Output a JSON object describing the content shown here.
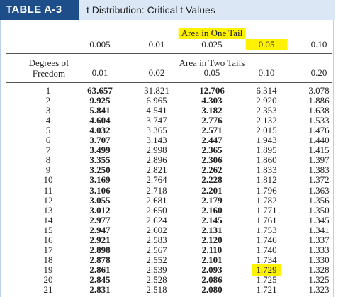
{
  "header": {
    "label": "TABLE A-3",
    "title": "t Distribution: Critical t Values"
  },
  "table": {
    "one_tail_caption": "Area in One Tail",
    "one_tail": [
      "0.005",
      "0.01",
      "0.025",
      "0.05",
      "0.10"
    ],
    "df_caption": "Degrees of Freedom",
    "two_tail_caption": "Area in Two Tails",
    "two_tail": [
      "0.01",
      "0.02",
      "0.05",
      "0.10",
      "0.20"
    ],
    "rows": [
      [
        "1",
        "63.657",
        "31.821",
        "12.706",
        "6.314",
        "3.078"
      ],
      [
        "2",
        "9.925",
        "6.965",
        "4.303",
        "2.920",
        "1.886"
      ],
      [
        "3",
        "5.841",
        "4.541",
        "3.182",
        "2.353",
        "1.638"
      ],
      [
        "4",
        "4.604",
        "3.747",
        "2.776",
        "2.132",
        "1.533"
      ],
      [
        "5",
        "4.032",
        "3.365",
        "2.571",
        "2.015",
        "1.476"
      ],
      [
        "6",
        "3.707",
        "3.143",
        "2.447",
        "1.943",
        "1.440"
      ],
      [
        "7",
        "3.499",
        "2.998",
        "2.365",
        "1.895",
        "1.415"
      ],
      [
        "8",
        "3.355",
        "2.896",
        "2.306",
        "1.860",
        "1.397"
      ],
      [
        "9",
        "3.250",
        "2.821",
        "2.262",
        "1.833",
        "1.383"
      ],
      [
        "10",
        "3.169",
        "2.764",
        "2.228",
        "1.812",
        "1.372"
      ],
      [
        "11",
        "3.106",
        "2.718",
        "2.201",
        "1.796",
        "1.363"
      ],
      [
        "12",
        "3.055",
        "2.681",
        "2.179",
        "1.782",
        "1.356"
      ],
      [
        "13",
        "3.012",
        "2.650",
        "2.160",
        "1.771",
        "1.350"
      ],
      [
        "14",
        "2.977",
        "2.624",
        "2.145",
        "1.761",
        "1.345"
      ],
      [
        "15",
        "2.947",
        "2.602",
        "2.131",
        "1.753",
        "1.341"
      ],
      [
        "16",
        "2.921",
        "2.583",
        "2.120",
        "1.746",
        "1.337"
      ],
      [
        "17",
        "2.898",
        "2.567",
        "2.110",
        "1.740",
        "1.333"
      ],
      [
        "18",
        "2.878",
        "2.552",
        "2.101",
        "1.734",
        "1.330"
      ],
      [
        "19",
        "2.861",
        "2.539",
        "2.093",
        "1.729",
        "1.328"
      ],
      [
        "20",
        "2.845",
        "2.528",
        "2.086",
        "1.725",
        "1.325"
      ],
      [
        "21",
        "2.831",
        "2.518",
        "2.080",
        "1.721",
        "1.323"
      ]
    ]
  }
}
